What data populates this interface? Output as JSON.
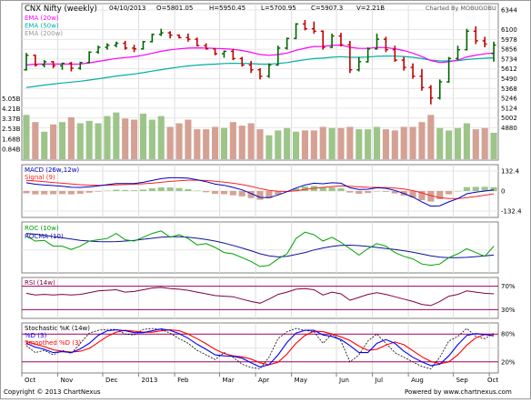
{
  "chart_data": {
    "type": "stock-multipanel",
    "header": {
      "title": "CNX Nifty (weekly)",
      "date": "04/10/2013",
      "open": "O=5801.05",
      "high": "H=5950.45",
      "low": "L=5700.95",
      "close": "C=5907.3",
      "volume": "V=2.21B",
      "credit": "Charted By MOBUGOBU"
    },
    "footer": {
      "copyright": "Copyright © 2013 ChartNexus",
      "powered": "Powered by www.chartnexus.com"
    },
    "x_months": [
      "Oct",
      "Nov",
      "Dec",
      "2013",
      "Feb",
      "Mar",
      "Apr",
      "May",
      "Jun",
      "Jul",
      "Aug",
      "Sep",
      "Oct"
    ],
    "x_month_week_index": [
      0,
      4,
      9,
      13,
      17,
      22,
      26,
      30,
      35,
      39,
      43,
      48,
      52
    ],
    "colors": {
      "up_candle": "#006400",
      "down_candle": "#c00000",
      "ema20": "#ff00ff",
      "ema50": "#00b0a0",
      "volume_up": "#9dc58a",
      "volume_down": "#d4a194",
      "macd": "#0000c0",
      "signal": "#ff2020",
      "roc": "#00a000",
      "rocma": "#1010a0",
      "rsi": "#800040",
      "stoch_k": "#000000",
      "stoch_d": "#0000ff",
      "smoothed_d": "#ff0000",
      "band": "#a00060"
    },
    "price_panel": {
      "legend": [
        "EMA (20w)",
        "EMA (50w)",
        "EMA (200w)"
      ],
      "ylim": [
        4500,
        6400
      ],
      "y_ticks": [
        {
          "v": 6344,
          "t": "6344"
        },
        {
          "v": 6100,
          "t": "6100"
        },
        {
          "v": 5978,
          "t": "5978"
        },
        {
          "v": 5856,
          "t": "5856"
        },
        {
          "v": 5734,
          "t": "5734"
        },
        {
          "v": 5612,
          "t": "5612"
        },
        {
          "v": 5490,
          "t": "5490"
        },
        {
          "v": 5368,
          "t": "5368"
        },
        {
          "v": 5246,
          "t": "5246"
        },
        {
          "v": 5124,
          "t": "5124"
        },
        {
          "v": 5002,
          "t": "5002"
        },
        {
          "v": 4880,
          "t": "4880"
        }
      ],
      "volume_axis": {
        "max": 6,
        "ticks": [
          {
            "v": 5.05,
            "t": "5.05B"
          },
          {
            "v": 4.21,
            "t": "4.21B"
          },
          {
            "v": 3.37,
            "t": "3.37B"
          },
          {
            "v": 2.53,
            "t": "2.53B"
          },
          {
            "v": 1.68,
            "t": "1.68B"
          },
          {
            "v": 0.84,
            "t": "0.84B"
          }
        ]
      },
      "candles": [
        [
          5600,
          5810,
          5590,
          5780
        ],
        [
          5780,
          5790,
          5640,
          5660
        ],
        [
          5660,
          5720,
          5630,
          5700
        ],
        [
          5700,
          5710,
          5620,
          5650
        ],
        [
          5650,
          5690,
          5600,
          5680
        ],
        [
          5680,
          5700,
          5580,
          5620
        ],
        [
          5620,
          5700,
          5600,
          5690
        ],
        [
          5690,
          5830,
          5680,
          5820
        ],
        [
          5820,
          5900,
          5800,
          5880
        ],
        [
          5880,
          5930,
          5850,
          5905
        ],
        [
          5905,
          5950,
          5880,
          5930
        ],
        [
          5930,
          5960,
          5850,
          5870
        ],
        [
          5870,
          5910,
          5820,
          5860
        ],
        [
          5860,
          5960,
          5850,
          5950
        ],
        [
          5950,
          6050,
          5940,
          6040
        ],
        [
          6040,
          6110,
          6020,
          6060
        ],
        [
          6060,
          6080,
          5990,
          6030
        ],
        [
          6030,
          6040,
          5990,
          6000
        ],
        [
          6000,
          6050,
          5950,
          5980
        ],
        [
          5980,
          6000,
          5890,
          5900
        ],
        [
          5900,
          5930,
          5850,
          5860
        ],
        [
          5860,
          5870,
          5780,
          5800
        ],
        [
          5800,
          5840,
          5750,
          5830
        ],
        [
          5830,
          5860,
          5720,
          5740
        ],
        [
          5740,
          5760,
          5640,
          5660
        ],
        [
          5660,
          5710,
          5560,
          5600
        ],
        [
          5600,
          5620,
          5480,
          5520
        ],
        [
          5520,
          5680,
          5500,
          5660
        ],
        [
          5660,
          5900,
          5650,
          5870
        ],
        [
          5870,
          6000,
          5850,
          5990
        ],
        [
          5990,
          6180,
          5980,
          6170
        ],
        [
          6170,
          6220,
          6090,
          6110
        ],
        [
          6110,
          6200,
          6050,
          6080
        ],
        [
          6080,
          6090,
          5850,
          5880
        ],
        [
          5880,
          6050,
          5870,
          6020
        ],
        [
          6020,
          6060,
          5890,
          5910
        ],
        [
          5910,
          5960,
          5560,
          5600
        ],
        [
          5600,
          5760,
          5580,
          5700
        ],
        [
          5700,
          5880,
          5690,
          5860
        ],
        [
          5860,
          6050,
          5850,
          5980
        ],
        [
          5980,
          6010,
          5820,
          5850
        ],
        [
          5850,
          5900,
          5700,
          5720
        ],
        [
          5720,
          5760,
          5590,
          5630
        ],
        [
          5630,
          5680,
          5490,
          5520
        ],
        [
          5520,
          5610,
          5340,
          5380
        ],
        [
          5380,
          5410,
          5170,
          5250
        ],
        [
          5250,
          5480,
          5230,
          5450
        ],
        [
          5450,
          5760,
          5440,
          5740
        ],
        [
          5740,
          5900,
          5720,
          5850
        ],
        [
          5850,
          6110,
          5840,
          6080
        ],
        [
          6080,
          6140,
          5920,
          5960
        ],
        [
          5960,
          6010,
          5880,
          5920
        ],
        [
          5801,
          5950,
          5701,
          5907
        ]
      ],
      "ema20": [
        5660,
        5670,
        5672,
        5672,
        5673,
        5670,
        5672,
        5686,
        5704,
        5722,
        5741,
        5752,
        5762,
        5781,
        5805,
        5830,
        5848,
        5860,
        5870,
        5873,
        5871,
        5866,
        5862,
        5855,
        5840,
        5818,
        5790,
        5780,
        5789,
        5808,
        5842,
        5869,
        5890,
        5891,
        5904,
        5908,
        5880,
        5866,
        5866,
        5878,
        5876,
        5862,
        5839,
        5807,
        5764,
        5716,
        5690,
        5700,
        5720,
        5760,
        5783,
        5798,
        5810
      ],
      "ema50": [
        5380,
        5395,
        5410,
        5423,
        5436,
        5447,
        5458,
        5473,
        5489,
        5505,
        5522,
        5535,
        5548,
        5564,
        5583,
        5602,
        5619,
        5634,
        5648,
        5658,
        5666,
        5671,
        5678,
        5681,
        5680,
        5677,
        5671,
        5670,
        5678,
        5690,
        5709,
        5725,
        5739,
        5745,
        5756,
        5763,
        5757,
        5755,
        5759,
        5768,
        5771,
        5770,
        5765,
        5755,
        5740,
        5720,
        5710,
        5710,
        5714,
        5728,
        5737,
        5744,
        5750
      ],
      "volume": [
        3.7,
        3.1,
        2.3,
        2.9,
        3.1,
        3.5,
        3.0,
        3.2,
        3.0,
        3.6,
        3.9,
        3.4,
        3.3,
        3.8,
        3.3,
        3.6,
        2.7,
        3.0,
        3.3,
        2.5,
        2.5,
        2.7,
        2.6,
        3.1,
        2.8,
        3.0,
        2.5,
        2.0,
        2.4,
        2.6,
        2.3,
        2.4,
        2.4,
        2.7,
        2.6,
        2.6,
        2.7,
        2.5,
        2.5,
        2.7,
        2.5,
        2.4,
        2.7,
        2.7,
        3.1,
        3.7,
        2.6,
        2.4,
        2.6,
        3.0,
        2.5,
        2.6,
        2.21
      ]
    },
    "macd_panel": {
      "label_macd": "MACD (26w,12w)",
      "label_signal": "Signal (9)",
      "ylim": [
        -175,
        175
      ],
      "y_ticks": [
        {
          "v": 132.4,
          "t": "132.4"
        },
        {
          "v": 0,
          "t": "0"
        },
        {
          "v": -132.4,
          "t": "-132.4"
        }
      ],
      "macd": [
        55,
        45,
        40,
        36,
        32,
        25,
        24,
        28,
        34,
        42,
        50,
        50,
        50,
        58,
        70,
        82,
        88,
        88,
        85,
        75,
        62,
        46,
        38,
        24,
        8,
        -16,
        -42,
        -44,
        -26,
        -4,
        20,
        40,
        52,
        48,
        55,
        52,
        22,
        10,
        12,
        22,
        18,
        4,
        -16,
        -40,
        -72,
        -100,
        -98,
        -72,
        -50,
        -18,
        -8,
        0,
        8
      ],
      "signal": [
        70,
        67,
        62,
        57,
        52,
        47,
        42,
        39,
        38,
        39,
        41,
        43,
        45,
        48,
        52,
        58,
        64,
        68,
        72,
        72,
        70,
        65,
        59,
        52,
        43,
        31,
        16,
        4,
        -2,
        -3,
        2,
        10,
        18,
        24,
        30,
        34,
        32,
        28,
        25,
        24,
        23,
        20,
        14,
        3,
        -12,
        -30,
        -44,
        -50,
        -50,
        -44,
        -36,
        -28,
        -18
      ]
    },
    "roc_panel": {
      "label_roc": "ROC (10w)",
      "label_rocma": "ROCMA (10)",
      "ylim": [
        -9,
        11
      ],
      "roc": [
        5.5,
        3.5,
        3.8,
        1.5,
        1.5,
        0.2,
        1.5,
        3.5,
        4.0,
        4.5,
        6.5,
        4.0,
        3.5,
        5.0,
        6.5,
        7.5,
        5.0,
        6.0,
        4.5,
        2.0,
        2.5,
        1.0,
        -1.0,
        -1.5,
        -3.0,
        -4.5,
        -6.5,
        -6.0,
        -3.5,
        -1.5,
        4.5,
        7.0,
        6.0,
        3.5,
        5.0,
        3.0,
        0.5,
        -2.0,
        0.5,
        2.5,
        1.5,
        -1.0,
        -2.5,
        -3.5,
        -5.5,
        -6.0,
        -5.5,
        -3.0,
        -1.5,
        0.5,
        -1.0,
        -2.5,
        1.5
      ],
      "rocma": [
        6.5,
        6.2,
        5.8,
        5.3,
        4.8,
        4.3,
        3.8,
        3.5,
        3.3,
        3.2,
        3.3,
        3.5,
        3.8,
        4.2,
        4.6,
        5.0,
        5.2,
        5.2,
        5.0,
        4.6,
        4.1,
        3.5,
        2.7,
        1.8,
        0.8,
        -0.3,
        -1.5,
        -2.3,
        -2.7,
        -2.5,
        -1.8,
        -1.0,
        0.0,
        0.8,
        1.4,
        1.8,
        1.9,
        1.7,
        1.4,
        1.0,
        0.6,
        0.2,
        -0.3,
        -0.9,
        -1.6,
        -2.3,
        -2.8,
        -3.0,
        -3.0,
        -2.9,
        -2.6,
        -2.3,
        -2.0
      ]
    },
    "rsi_panel": {
      "label": "RSI (14w)",
      "ylim": [
        15,
        85
      ],
      "bands": [
        {
          "v": 70,
          "t": "70%"
        },
        {
          "v": 30,
          "t": "30%"
        }
      ],
      "rsi": [
        58,
        55,
        56,
        55,
        56,
        55,
        56,
        59,
        62,
        63,
        64,
        60,
        61,
        64,
        67,
        68,
        66,
        65,
        63,
        60,
        57,
        54,
        53,
        52,
        48,
        44,
        41,
        48,
        56,
        60,
        65,
        66,
        64,
        55,
        60,
        57,
        46,
        51,
        56,
        59,
        56,
        52,
        48,
        44,
        39,
        37,
        44,
        53,
        56,
        62,
        60,
        58,
        57
      ]
    },
    "stoch_panel": {
      "label_k": "Stochastic %K (14w)",
      "label_d": "%D (3)",
      "label_smoothed": "Smoothed %D (3)",
      "ylim": [
        0,
        100
      ],
      "bands": [
        {
          "v": 80,
          "t": "80%"
        },
        {
          "v": 20,
          "t": "20%"
        }
      ],
      "k": [
        55,
        40,
        45,
        35,
        45,
        38,
        60,
        82,
        88,
        90,
        90,
        80,
        78,
        90,
        92,
        90,
        82,
        70,
        60,
        45,
        35,
        25,
        40,
        30,
        15,
        8,
        5,
        30,
        70,
        85,
        92,
        88,
        85,
        60,
        80,
        65,
        20,
        35,
        65,
        80,
        60,
        40,
        30,
        20,
        10,
        5,
        30,
        65,
        75,
        92,
        75,
        70,
        82
      ],
      "d": [
        60,
        52,
        47,
        40,
        42,
        40,
        48,
        60,
        77,
        87,
        89,
        87,
        83,
        83,
        87,
        91,
        88,
        81,
        71,
        58,
        47,
        35,
        33,
        32,
        28,
        18,
        9,
        14,
        35,
        62,
        82,
        88,
        88,
        78,
        75,
        68,
        55,
        40,
        40,
        60,
        68,
        60,
        43,
        30,
        20,
        12,
        15,
        33,
        57,
        77,
        81,
        79,
        76
      ],
      "smoothed": [
        64,
        58,
        53,
        46,
        43,
        41,
        43,
        49,
        62,
        75,
        84,
        88,
        86,
        84,
        84,
        87,
        89,
        87,
        80,
        70,
        59,
        47,
        38,
        33,
        31,
        26,
        18,
        14,
        19,
        37,
        60,
        77,
        86,
        85,
        80,
        74,
        66,
        54,
        45,
        47,
        56,
        63,
        57,
        44,
        31,
        21,
        16,
        20,
        35,
        56,
        72,
        79,
        79
      ]
    }
  }
}
